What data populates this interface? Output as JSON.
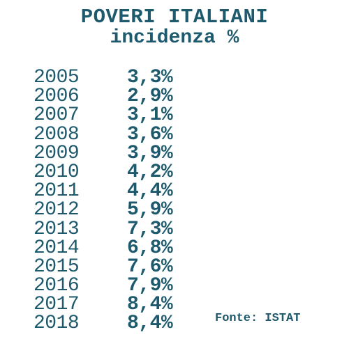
{
  "chart_data": {
    "type": "table",
    "title": "POVERI ITALIANI",
    "subtitle": "incidenza %",
    "columns": [
      "",
      ""
    ],
    "rows": [
      {
        "year": "2005",
        "value": "3,3%"
      },
      {
        "year": "2006",
        "value": "2,9%"
      },
      {
        "year": "2007",
        "value": "3,1%"
      },
      {
        "year": "2008",
        "value": "3,6%"
      },
      {
        "year": "2009",
        "value": "3,9%"
      },
      {
        "year": "2010",
        "value": "4,2%"
      },
      {
        "year": "2011",
        "value": "4,4%"
      },
      {
        "year": "2012",
        "value": "5,9%"
      },
      {
        "year": "2013",
        "value": "7,3%"
      },
      {
        "year": "2014",
        "value": "6,8%"
      },
      {
        "year": "2015",
        "value": "7,6%"
      },
      {
        "year": "2016",
        "value": "7,9%"
      },
      {
        "year": "2017",
        "value": "8,4%"
      },
      {
        "year": "2018",
        "value": "8,4%"
      }
    ],
    "values": [
      3.3,
      2.9,
      3.1,
      3.6,
      3.9,
      4.2,
      4.4,
      5.9,
      7.3,
      6.8,
      7.6,
      7.9,
      8.4,
      8.4
    ],
    "source": "Fonte: ISTAT"
  },
  "colors": {
    "text": "#1e5a6e",
    "background": "#ffffff"
  }
}
